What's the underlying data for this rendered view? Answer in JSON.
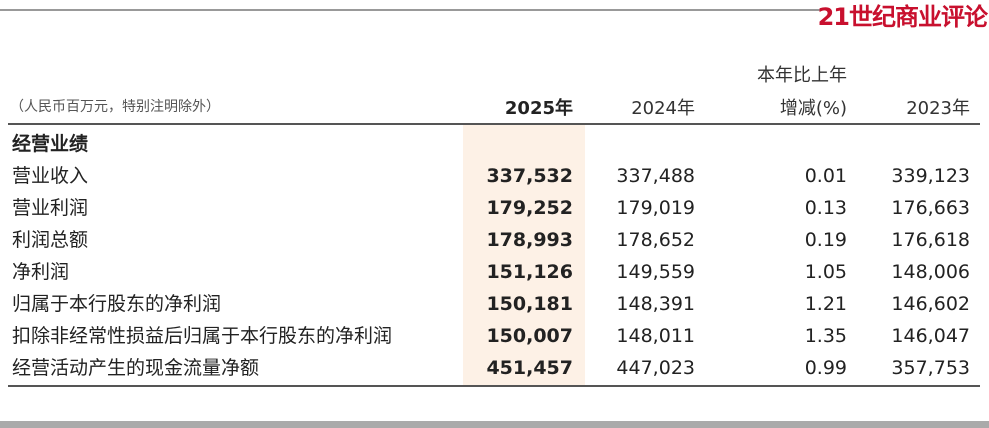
{
  "logo": "21世纪商业评论",
  "header": {
    "unit": "（人民币百万元，特别注明除外）",
    "col_2025": "2025年",
    "col_2024": "2024年",
    "col_change_line1": "本年比上年",
    "col_change_line2": "增减(%)",
    "col_2023": "2023年"
  },
  "section": "经营业绩",
  "rows": [
    {
      "label": "营业收入",
      "y2025": "337,532",
      "y2024": "337,488",
      "change": "0.01",
      "y2023": "339,123"
    },
    {
      "label": "营业利润",
      "y2025": "179,252",
      "y2024": "179,019",
      "change": "0.13",
      "y2023": "176,663"
    },
    {
      "label": "利润总额",
      "y2025": "178,993",
      "y2024": "178,652",
      "change": "0.19",
      "y2023": "176,618"
    },
    {
      "label": "净利润",
      "y2025": "151,126",
      "y2024": "149,559",
      "change": "1.05",
      "y2023": "148,006"
    },
    {
      "label": "归属于本行股东的净利润",
      "y2025": "150,181",
      "y2024": "148,391",
      "change": "1.21",
      "y2023": "146,602"
    },
    {
      "label": "扣除非经常性损益后归属于本行股东的净利润",
      "y2025": "150,007",
      "y2024": "148,011",
      "change": "1.35",
      "y2023": "146,047"
    },
    {
      "label": "经营活动产生的现金流量净额",
      "y2025": "451,457",
      "y2024": "447,023",
      "change": "0.99",
      "y2023": "357,753"
    }
  ]
}
